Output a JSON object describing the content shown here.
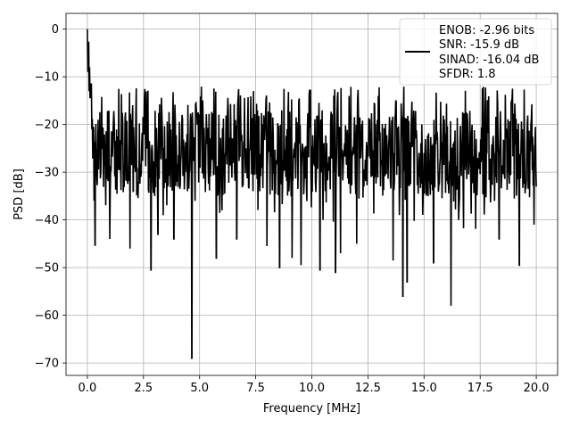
{
  "chart_data": {
    "type": "line",
    "title": "",
    "xlabel": "Frequency [MHz]",
    "ylabel": "PSD [dB]",
    "xlim": [
      -0.95,
      20.95
    ],
    "ylim": [
      -72.6,
      3.3
    ],
    "xticks": [
      0.0,
      2.5,
      5.0,
      7.5,
      10.0,
      12.5,
      15.0,
      17.5,
      20.0
    ],
    "xtick_labels": [
      "0.0",
      "2.5",
      "5.0",
      "7.5",
      "10.0",
      "12.5",
      "15.0",
      "17.5",
      "20.0"
    ],
    "yticks": [
      0,
      -10,
      -20,
      -30,
      -40,
      -50,
      -60,
      -70
    ],
    "ytick_labels": [
      "0",
      "−10",
      "−20",
      "−30",
      "−40",
      "−50",
      "−60",
      "−70"
    ],
    "grid": true,
    "legend_position": "upper-right",
    "legend_lines": [
      "ENOB: -2.96 bits",
      "SNR: -15.9 dB",
      "SINAD: -16.04 dB",
      "SFDR: 1.8"
    ],
    "series": [
      {
        "color": "#000000",
        "description": "Dense noisy PSD trace; floor oscillates mostly between about -35 dB and -15 dB across 0-20 MHz",
        "points": [
          [
            0.0,
            0.0
          ],
          [
            0.02,
            -9.0
          ],
          [
            0.05,
            -4.0
          ],
          [
            0.08,
            -13.0
          ],
          [
            0.1,
            -8.0
          ],
          [
            0.15,
            -12.0
          ],
          [
            0.2,
            -21.0
          ],
          [
            0.25,
            -27.0
          ],
          [
            0.35,
            -45.3
          ],
          [
            0.6,
            -30.0
          ],
          [
            1.0,
            -44.0
          ],
          [
            1.9,
            -46.0
          ],
          [
            2.05,
            -34.0
          ],
          [
            2.83,
            -50.5
          ],
          [
            3.0,
            -35.0
          ],
          [
            3.15,
            -43.0
          ],
          [
            3.85,
            -44.0
          ],
          [
            4.0,
            -32.0
          ],
          [
            4.65,
            -69.0
          ],
          [
            4.8,
            -36.0
          ],
          [
            5.75,
            -48.0
          ],
          [
            6.0,
            -38.0
          ],
          [
            6.65,
            -44.0
          ],
          [
            8.0,
            -45.5
          ],
          [
            8.57,
            -50.0
          ],
          [
            9.12,
            -48.0
          ],
          [
            9.52,
            -49.5
          ],
          [
            10.37,
            -50.5
          ],
          [
            10.5,
            -40.0
          ],
          [
            11.05,
            -51.0
          ],
          [
            11.28,
            -47.0
          ],
          [
            12.0,
            -45.0
          ],
          [
            13.62,
            -48.5
          ],
          [
            13.9,
            -39.0
          ],
          [
            14.05,
            -56.0
          ],
          [
            14.25,
            -53.0
          ],
          [
            15.43,
            -49.0
          ],
          [
            16.2,
            -58.0
          ],
          [
            18.35,
            -44.0
          ],
          [
            19.25,
            -49.5
          ],
          [
            19.9,
            -41.0
          ],
          [
            20.0,
            -33.0
          ]
        ]
      }
    ]
  }
}
